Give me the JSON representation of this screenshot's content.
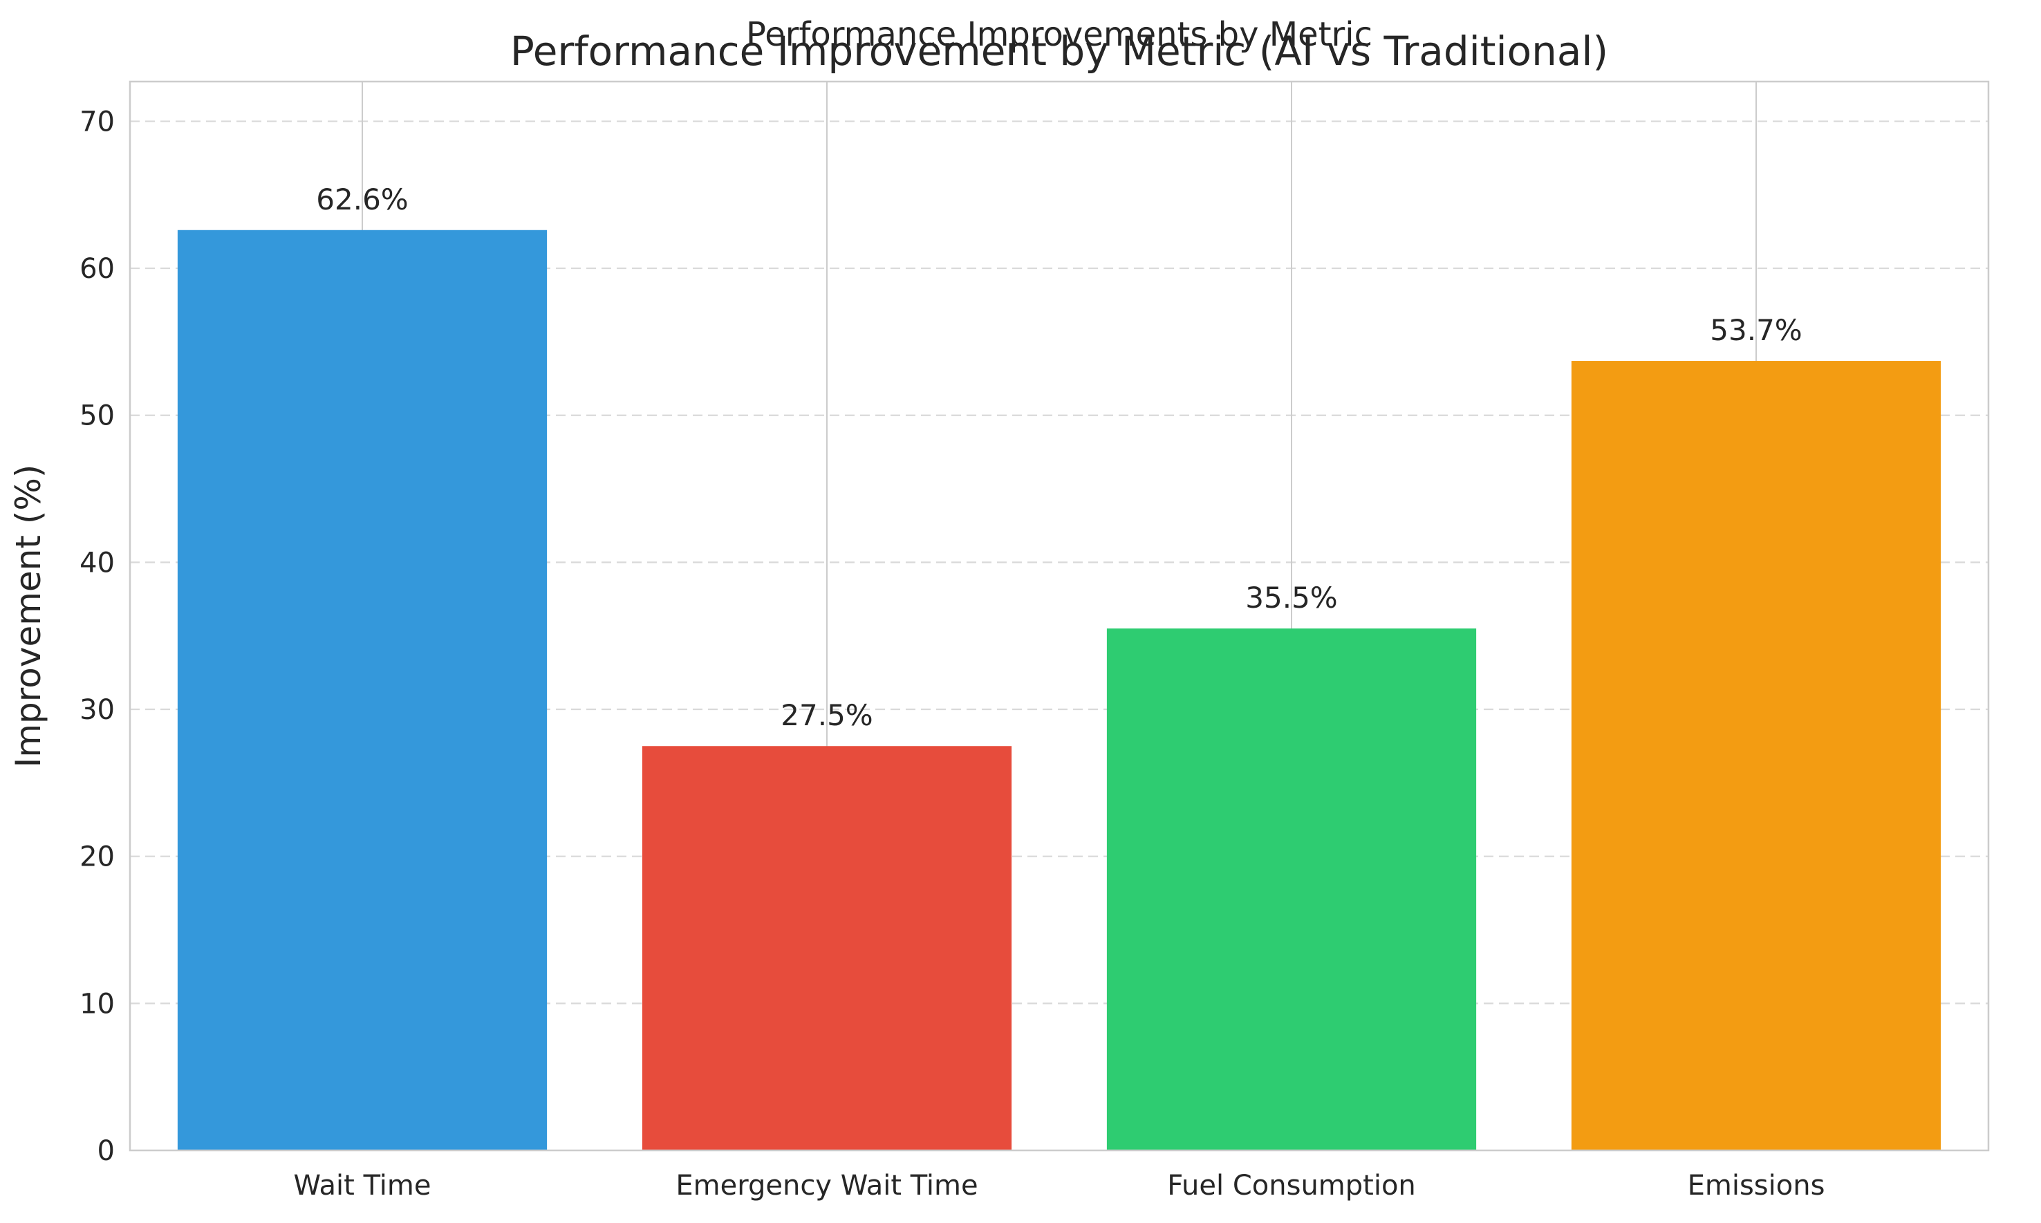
{
  "chart_data": {
    "type": "bar",
    "suptitle": "Performance Improvements by Metric",
    "title": "Performance Improvement by Metric (AI vs Traditional)",
    "xlabel": "",
    "ylabel": "Improvement (%)",
    "ylim": [
      0,
      72.7
    ],
    "yticks": [
      0,
      10,
      20,
      30,
      40,
      50,
      60,
      70
    ],
    "categories": [
      "Wait Time",
      "Emergency Wait Time",
      "Fuel Consumption",
      "Emissions"
    ],
    "values": [
      62.6,
      27.5,
      35.5,
      53.7
    ],
    "data_labels": [
      "62.6%",
      "27.5%",
      "35.5%",
      "53.7%"
    ],
    "colors": [
      "#3498db",
      "#e74c3c",
      "#2ecc71",
      "#f39c12"
    ],
    "grid": {
      "y": "dashed",
      "x": "solid"
    },
    "legend": "none"
  }
}
